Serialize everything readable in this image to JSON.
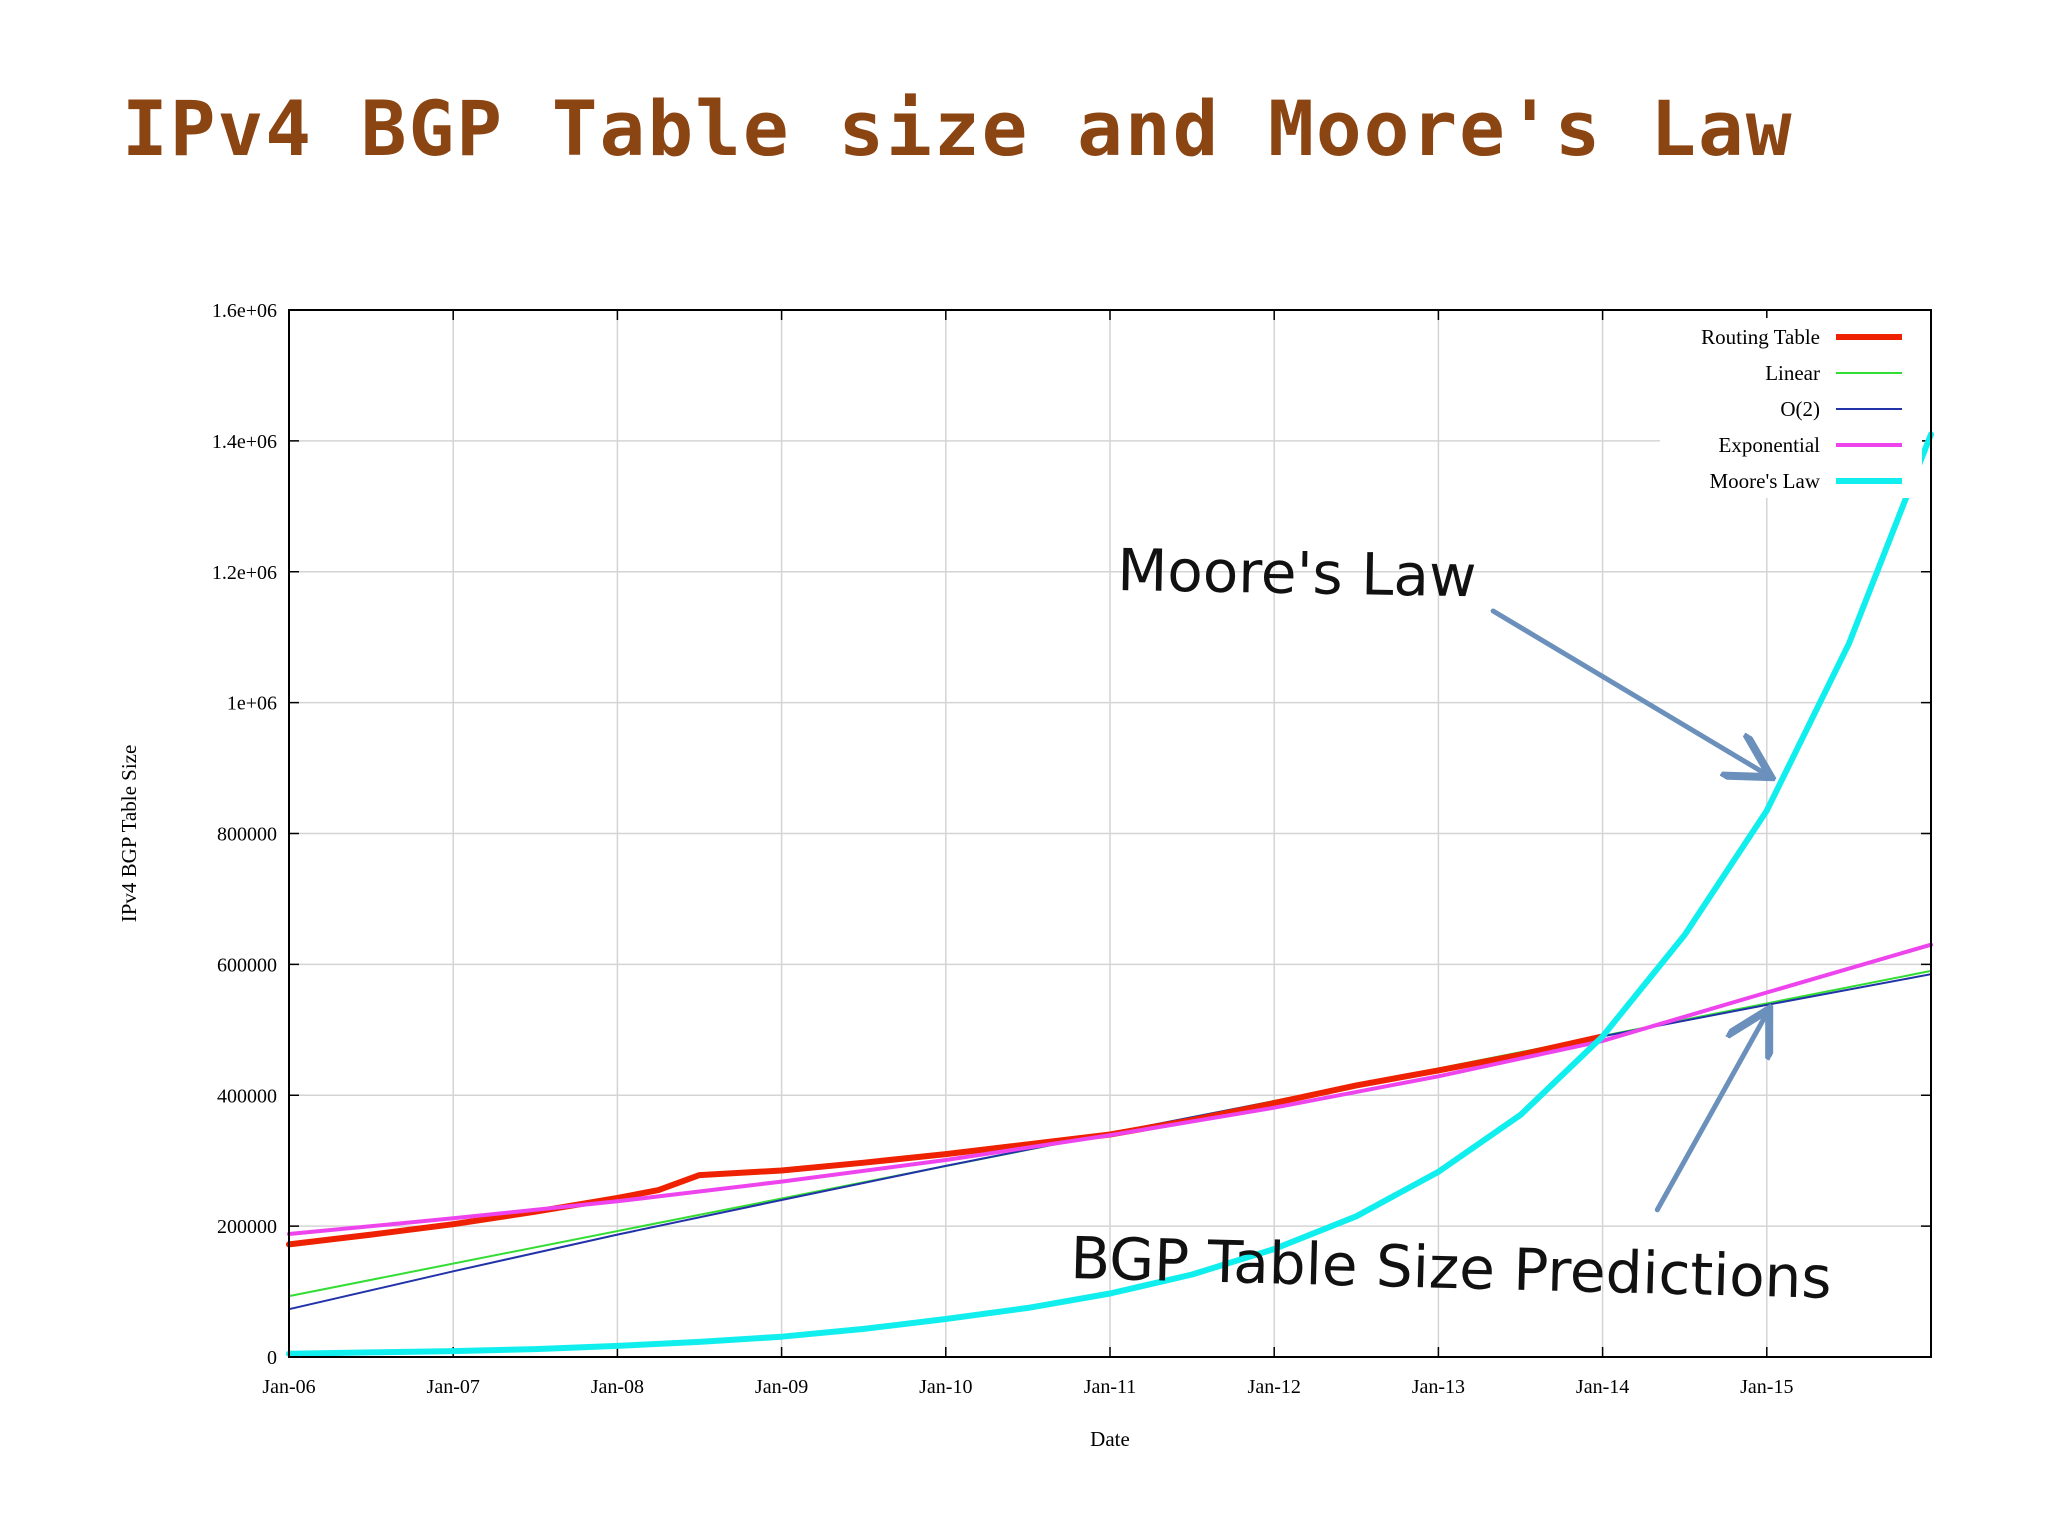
{
  "slide": {
    "title": "IPv4 BGP Table size and Moore's Law",
    "title_color": "#8b4513"
  },
  "chart_data": {
    "type": "line",
    "xlabel": "Date",
    "ylabel": "IPv4 BGP Table Size",
    "xlim": [
      "2006-01",
      "2016-01"
    ],
    "ylim": [
      0,
      1600000
    ],
    "x_ticks": [
      "Jan-06",
      "Jan-07",
      "Jan-08",
      "Jan-09",
      "Jan-10",
      "Jan-11",
      "Jan-12",
      "Jan-13",
      "Jan-14",
      "Jan-15"
    ],
    "y_ticks": [
      "0",
      "200000",
      "400000",
      "600000",
      "800000",
      "1e+06",
      "1.2e+06",
      "1.4e+06",
      "1.6e+06"
    ],
    "grid": true,
    "legend_position": "top-right",
    "series": [
      {
        "name": "Routing Table",
        "color": "#ee2200",
        "x": [
          "2006-01",
          "2006-07",
          "2007-01",
          "2007-07",
          "2008-01",
          "2008-04",
          "2008-07",
          "2009-01",
          "2009-07",
          "2010-01",
          "2010-07",
          "2011-01",
          "2011-07",
          "2012-01",
          "2012-07",
          "2013-01",
          "2013-07",
          "2014-01"
        ],
        "values": [
          172000,
          187000,
          203000,
          222000,
          243000,
          255000,
          278000,
          285000,
          297000,
          310000,
          325000,
          340000,
          362000,
          388000,
          415000,
          438000,
          462000,
          490000
        ]
      },
      {
        "name": "Linear",
        "color": "#33dd33",
        "x": [
          "2006-01",
          "2016-01"
        ],
        "values": [
          93000,
          590000
        ]
      },
      {
        "name": "O(2)",
        "color": "#2233aa",
        "x": [
          "2006-01",
          "2007-01",
          "2008-01",
          "2009-01",
          "2010-01",
          "2011-01",
          "2012-01",
          "2013-01",
          "2014-01",
          "2015-01",
          "2016-01"
        ],
        "values": [
          73000,
          131000,
          187000,
          240000,
          292000,
          342000,
          391000,
          440000,
          490000,
          538000,
          585000
        ]
      },
      {
        "name": "Exponential",
        "color": "#ee44ee",
        "x": [
          "2006-01",
          "2007-01",
          "2008-01",
          "2009-01",
          "2010-01",
          "2011-01",
          "2012-01",
          "2013-01",
          "2014-01",
          "2015-01",
          "2016-01"
        ],
        "values": [
          188000,
          212000,
          238000,
          268000,
          301000,
          339000,
          381000,
          429000,
          483000,
          557000,
          630000
        ]
      },
      {
        "name": "Moore's Law",
        "color": "#11eeee",
        "x": [
          "2006-01",
          "2006-07",
          "2007-01",
          "2007-07",
          "2008-01",
          "2008-07",
          "2009-01",
          "2009-07",
          "2010-01",
          "2010-07",
          "2011-01",
          "2011-07",
          "2012-01",
          "2012-07",
          "2013-01",
          "2013-07",
          "2014-01",
          "2014-07",
          "2015-01",
          "2015-07",
          "2016-01"
        ],
        "values": [
          5000,
          7000,
          9000,
          12000,
          17000,
          23000,
          31000,
          43000,
          58000,
          75000,
          97000,
          126000,
          165000,
          215000,
          283000,
          370000,
          490000,
          645000,
          835000,
          1090000,
          1410000
        ]
      }
    ],
    "annotations": [
      {
        "text": "Moore's Law",
        "arrow_from": [
          "2013-05",
          1140000
        ],
        "arrow_to": [
          "2015-01",
          890000
        ]
      },
      {
        "text": "BGP Table Size Predictions",
        "arrow_from": [
          "2014-05",
          225000
        ],
        "arrow_to": [
          "2015-01",
          525000
        ]
      }
    ]
  }
}
